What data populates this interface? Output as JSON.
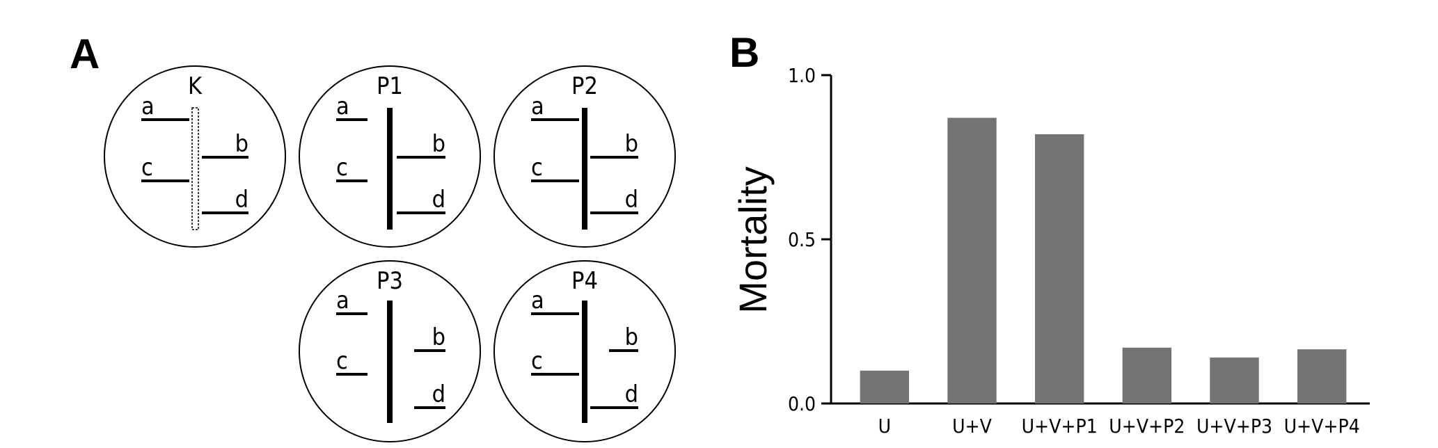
{
  "panel_a": {
    "letter": "A",
    "plates": [
      {
        "label": "K",
        "arms": [
          "a",
          "b",
          "c",
          "d"
        ]
      },
      {
        "label": "P1",
        "arms": [
          "a",
          "b",
          "c",
          "d"
        ]
      },
      {
        "label": "P2",
        "arms": [
          "a",
          "b",
          "c",
          "d"
        ]
      },
      {
        "label": "P3",
        "arms": [
          "a",
          "b",
          "c",
          "d"
        ]
      },
      {
        "label": "P4",
        "arms": [
          "a",
          "b",
          "c",
          "d"
        ]
      }
    ]
  },
  "panel_b": {
    "letter": "B",
    "chart_data": {
      "type": "bar",
      "categories": [
        "U",
        "U+V",
        "U+V+P1",
        "U+V+P2",
        "U+V+P3",
        "U+V+P4"
      ],
      "values": [
        0.1,
        0.87,
        0.82,
        0.17,
        0.14,
        0.165
      ],
      "ylabel": "Mortality",
      "yticks": [
        "0.0",
        "0.5",
        "1.0"
      ],
      "ylim": [
        0,
        1.0
      ],
      "bar_color": "#737373",
      "grid": false
    }
  }
}
